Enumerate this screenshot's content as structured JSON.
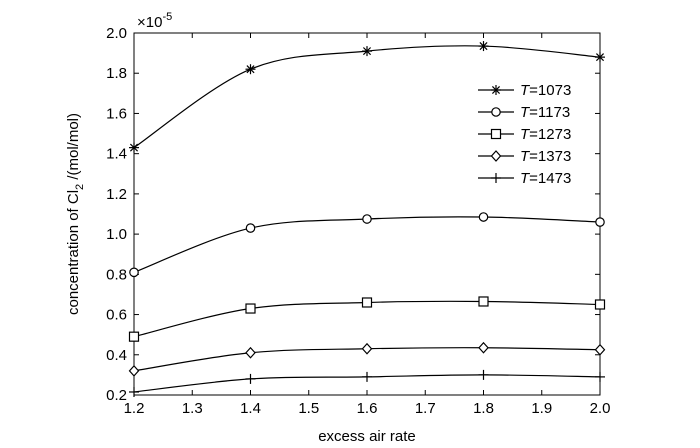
{
  "chart_data": {
    "type": "line",
    "xlabel": "excess air rate",
    "ylabel_main": "concentration of Cl",
    "ylabel_sub": "2",
    "ylabel_unit": " /(mol/mol)",
    "y_multiplier_base": "×10",
    "y_multiplier_exp": "-5",
    "xlim": [
      1.2,
      2.0
    ],
    "ylim": [
      0.2,
      2.0
    ],
    "x_ticks": [
      "1.2",
      "1.3",
      "1.4",
      "1.5",
      "1.6",
      "1.7",
      "1.8",
      "1.9",
      "2.0"
    ],
    "y_ticks": [
      "0.2",
      "0.4",
      "0.6",
      "0.8",
      "1.0",
      "1.2",
      "1.4",
      "1.6",
      "1.8",
      "2.0"
    ],
    "x": [
      1.2,
      1.4,
      1.6,
      1.8,
      2.0
    ],
    "grid": false,
    "legend_position": "top-right",
    "legend_var": "T",
    "series": [
      {
        "name": "=1073",
        "marker": "asterisk",
        "values": [
          1.43,
          1.82,
          1.91,
          1.935,
          1.88
        ]
      },
      {
        "name": "=1173",
        "marker": "circle",
        "values": [
          0.81,
          1.03,
          1.075,
          1.085,
          1.06
        ]
      },
      {
        "name": "=1273",
        "marker": "square",
        "values": [
          0.49,
          0.63,
          0.66,
          0.665,
          0.65
        ]
      },
      {
        "name": "=1373",
        "marker": "diamond",
        "values": [
          0.32,
          0.41,
          0.43,
          0.435,
          0.425
        ]
      },
      {
        "name": "=1473",
        "marker": "plus",
        "values": [
          0.215,
          0.28,
          0.29,
          0.3,
          0.29
        ]
      }
    ]
  }
}
